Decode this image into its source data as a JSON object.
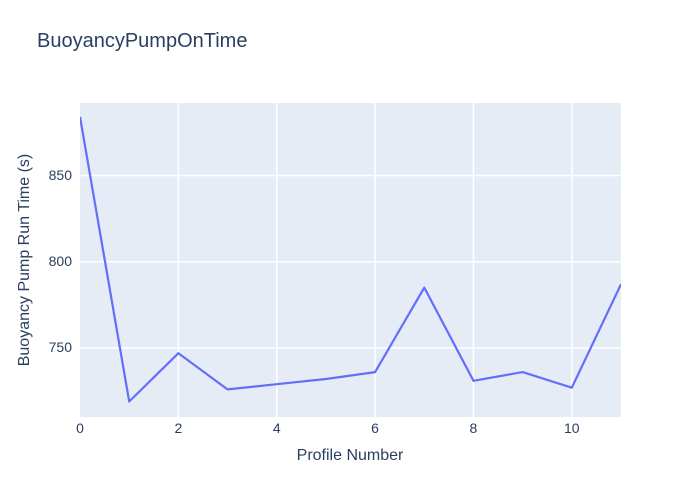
{
  "chart_data": {
    "type": "line",
    "title": "BuoyancyPumpOnTime",
    "xlabel": "Profile Number",
    "ylabel": "Buoyancy Pump Run Time (s)",
    "x": [
      0,
      1,
      2,
      3,
      4,
      5,
      6,
      7,
      8,
      9,
      10,
      11
    ],
    "y": [
      884,
      719,
      747,
      726,
      729,
      732,
      736,
      785,
      731,
      736,
      727,
      787
    ],
    "xlim": [
      0,
      11
    ],
    "ylim": [
      710,
      892
    ],
    "xticks": [
      0,
      2,
      4,
      6,
      8,
      10
    ],
    "yticks": [
      750,
      800,
      850
    ],
    "legend": "none",
    "grid": "on",
    "colors": {
      "line": "#636efa",
      "plot_background": "#e5ecf6",
      "grid": "#ffffff",
      "text": "#2a3f5f",
      "page_background": "#ffffff"
    }
  }
}
